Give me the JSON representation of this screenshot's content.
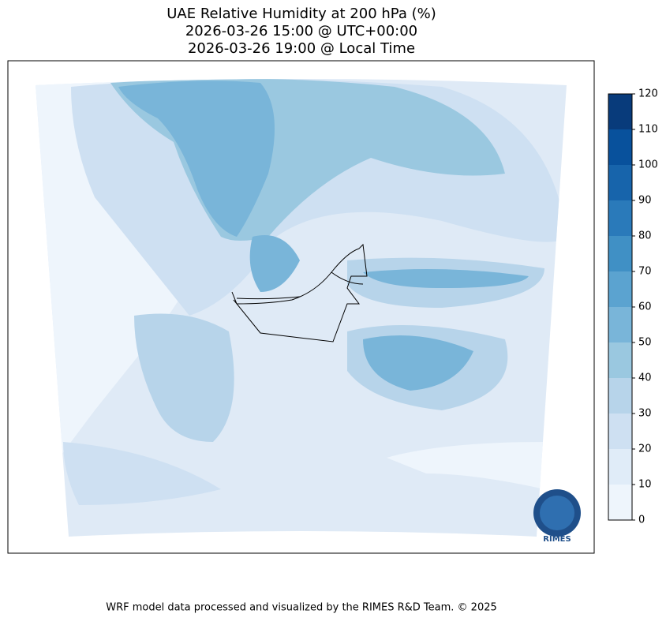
{
  "title": [
    "UAE Relative Humidity at 200 hPa (%)",
    "2026-03-26 15:00 @ UTC+00:00",
    "2026-03-26 19:00 @ Local Time"
  ],
  "colorbar": {
    "lim": [
      0,
      120
    ],
    "ticks": [
      0,
      10,
      20,
      30,
      40,
      50,
      60,
      70,
      80,
      90,
      100,
      110,
      120
    ],
    "colors": [
      "#eef5fc",
      "#e0ecf8",
      "#cee0f2",
      "#b7d4ea",
      "#9ac8e0",
      "#79b5d9",
      "#5ba3d0",
      "#4090c5",
      "#2a7aba",
      "#1764ab",
      "#08519c",
      "#083b7b"
    ]
  },
  "logo": "RIMES",
  "footer": "WRF model data processed and visualized by the RIMES R&D Team. © 2025"
}
